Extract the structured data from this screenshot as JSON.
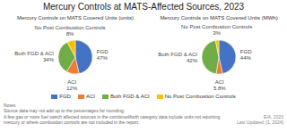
{
  "chart_data": [
    {
      "type": "pie",
      "title": "Mercury Controls at MATS-Affected Sources, 2023",
      "subtitle": "Mercury Controls on MATS Covered Units (units)",
      "categories": [
        "FGD",
        "ACI",
        "Both FGD & ACI",
        "No Post Combustion Controls"
      ],
      "values": [
        47,
        12,
        34,
        8
      ],
      "value_labels": [
        "FGD\n47%",
        "ACI\n12%",
        "Both FGD & ACI\n34%",
        "No Post Combustion Controls\n8%"
      ],
      "colors": [
        "#4472c4",
        "#ed7d31",
        "#70ad47",
        "#ffc000"
      ],
      "data_labels": true,
      "legend": "bottom",
      "annotations": [
        "Notes:\nSource data may not add up to the percentages for rounding.\nA few gas or more fuel switch affected sources in the combined/both category data include units not reporting mercury or where combustion controls are not included in the report.",
        "EIA, 2023\nLast Updated: [1, 2024]"
      ]
    },
    {
      "type": "pie",
      "subtitle": "Mercury Controls on MATS Covered Units (MWh)",
      "categories": [
        "FGD",
        "ACI",
        "Both FGD & ACI",
        "No Post Combustion Controls"
      ],
      "values": [
        44,
        5.8,
        42,
        3
      ],
      "value_labels": [
        "FGD\n44%",
        "ACI\n5.8%",
        "Both FGD & ACI\n42%",
        "No Post Combustion Controls\n3%"
      ],
      "colors": [
        "#4472c4",
        "#ed7d31",
        "#70ad47",
        "#ffc000"
      ],
      "data_labels": true
    }
  ]
}
